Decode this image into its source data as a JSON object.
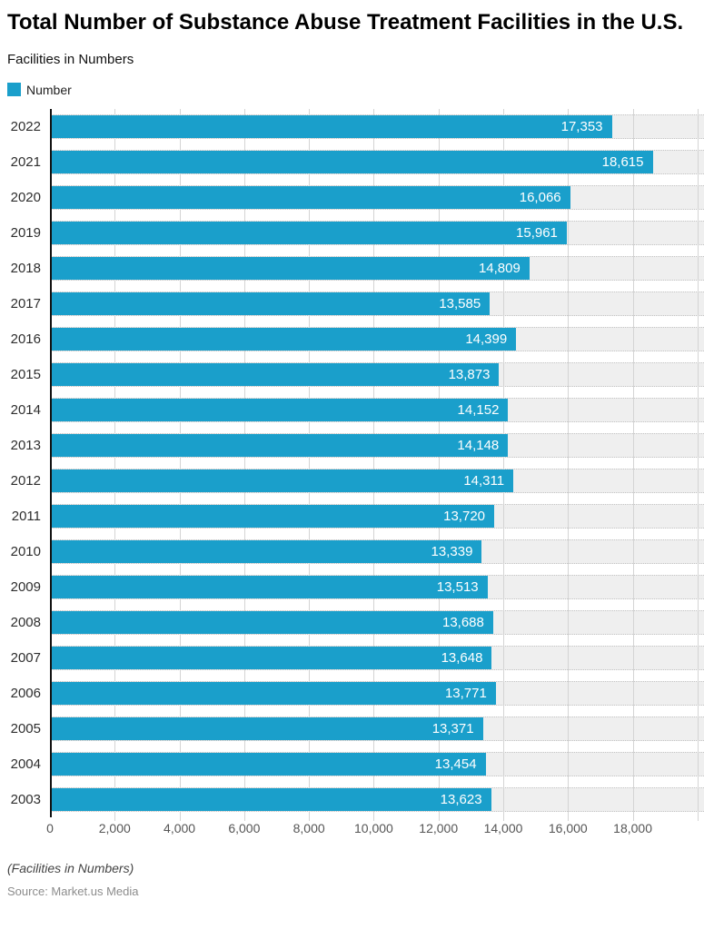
{
  "header": {
    "title": "Total Number of Substance Abuse Treatment Facilities in the U.S.",
    "subtitle": "Facilities in Numbers",
    "legend": [
      {
        "label": "Number",
        "color": "#1A9FCB"
      }
    ]
  },
  "chart_data": {
    "type": "bar",
    "orientation": "horizontal",
    "title": "Total Number of Substance Abuse Treatment Facilities in the U.S.",
    "subtitle": "Facilities in Numbers",
    "series_name": "Number",
    "categories": [
      "2022",
      "2021",
      "2020",
      "2019",
      "2018",
      "2017",
      "2016",
      "2015",
      "2014",
      "2013",
      "2012",
      "2011",
      "2010",
      "2009",
      "2008",
      "2007",
      "2006",
      "2005",
      "2004",
      "2003"
    ],
    "values": [
      17353,
      18615,
      16066,
      15961,
      14809,
      13585,
      14399,
      13873,
      14152,
      14148,
      14311,
      13720,
      13339,
      13513,
      13688,
      13648,
      13771,
      13371,
      13454,
      13623
    ],
    "value_labels": [
      "17,353",
      "18,615",
      "16,066",
      "15,961",
      "14,809",
      "13,585",
      "14,399",
      "13,873",
      "14,152",
      "14,148",
      "14,311",
      "13,720",
      "13,339",
      "13,513",
      "13,688",
      "13,648",
      "13,771",
      "13,371",
      "13,454",
      "13,623"
    ],
    "xlabel": "",
    "ylabel": "",
    "axis": {
      "x_ticks": [
        0,
        2000,
        4000,
        6000,
        8000,
        10000,
        12000,
        14000,
        16000,
        18000
      ],
      "x_tick_labels": [
        "0",
        "2,000",
        "4,000",
        "6,000",
        "8,000",
        "10,000",
        "12,000",
        "14,000",
        "16,000",
        "18,000"
      ],
      "gridlines": [
        2000,
        4000,
        6000,
        8000,
        10000,
        12000,
        14000,
        16000,
        18000,
        20000
      ],
      "x_max": 20200,
      "grid": true
    },
    "legend_position": "top-left",
    "colors": {
      "bar": "#1A9FCB",
      "track": "#EFEFEF",
      "grid": "#D4D4D4",
      "axis_line": "#111111"
    }
  },
  "footer": {
    "note": "(Facilities in Numbers)",
    "source": "Source: Market.us Media"
  }
}
